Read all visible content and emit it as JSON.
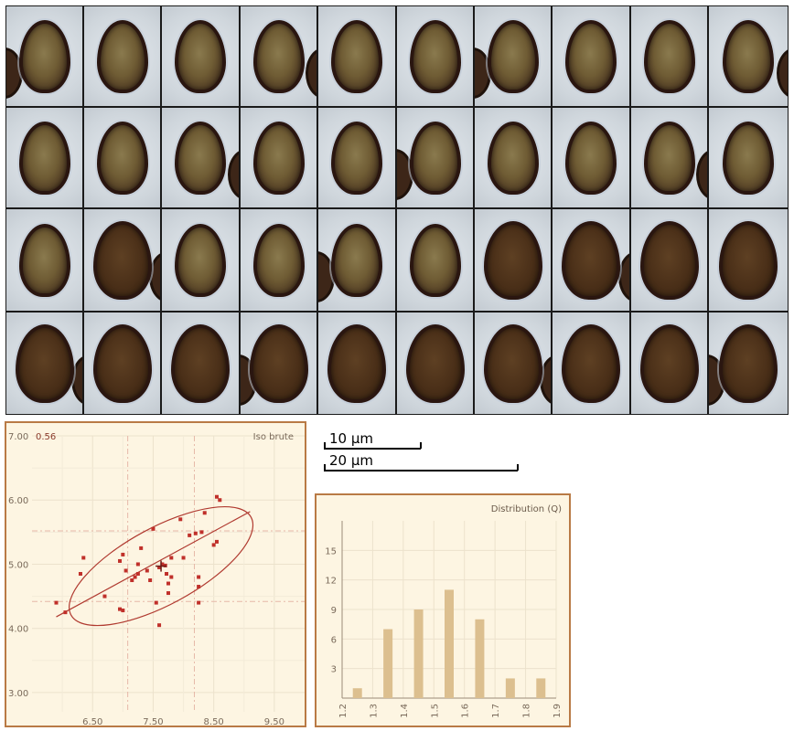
{
  "mosaic": {
    "rows": [
      [
        "light",
        "light",
        "light",
        "light",
        "light",
        "light",
        "light",
        "light",
        "light",
        "light"
      ],
      [
        "light",
        "light",
        "light",
        "light",
        "light",
        "light",
        "light",
        "light",
        "light",
        "light"
      ],
      [
        "light",
        "dark",
        "light",
        "light",
        "light",
        "light",
        "dark",
        "dark",
        "dark",
        "dark"
      ],
      [
        "dark",
        "dark",
        "dark",
        "dark",
        "dark",
        "dark",
        "dark",
        "dark",
        "dark",
        "dark"
      ]
    ]
  },
  "scale_bars": [
    {
      "label": "10 µm"
    },
    {
      "label": "20 µm"
    }
  ],
  "chart_data": [
    {
      "type": "scatter",
      "title": "Iso brute",
      "corner_value": "0.56",
      "x_ticks": [
        "6.50",
        "7.50",
        "8.50",
        "9.50"
      ],
      "x_tick_values": [
        6.5,
        7.5,
        8.5,
        9.5
      ],
      "y_ticks": [
        "7.00",
        "6.00",
        "5.00",
        "4.00",
        "3.00"
      ],
      "y_tick_values": [
        7,
        6,
        5,
        4,
        3
      ],
      "xlim": [
        5.5,
        10.0
      ],
      "ylim": [
        2.7,
        7.0
      ],
      "points": [
        [
          5.9,
          4.4
        ],
        [
          6.05,
          4.25
        ],
        [
          6.3,
          4.85
        ],
        [
          6.35,
          5.1
        ],
        [
          6.7,
          4.5
        ],
        [
          6.95,
          4.3
        ],
        [
          7.0,
          4.28
        ],
        [
          6.95,
          5.05
        ],
        [
          7.0,
          5.15
        ],
        [
          7.05,
          4.9
        ],
        [
          7.2,
          4.8
        ],
        [
          7.25,
          4.85
        ],
        [
          7.3,
          5.25
        ],
        [
          7.25,
          5.0
        ],
        [
          7.4,
          4.9
        ],
        [
          7.45,
          4.75
        ],
        [
          7.5,
          5.55
        ],
        [
          7.6,
          4.95
        ],
        [
          7.65,
          5.0
        ],
        [
          7.7,
          4.98
        ],
        [
          7.72,
          4.85
        ],
        [
          7.75,
          4.7
        ],
        [
          7.75,
          4.55
        ],
        [
          7.8,
          5.1
        ],
        [
          7.6,
          4.05
        ],
        [
          7.8,
          4.8
        ],
        [
          8.0,
          5.1
        ],
        [
          8.1,
          5.45
        ],
        [
          8.2,
          5.48
        ],
        [
          8.25,
          4.65
        ],
        [
          8.25,
          4.4
        ],
        [
          8.3,
          5.5
        ],
        [
          8.35,
          5.8
        ],
        [
          8.5,
          5.3
        ],
        [
          8.55,
          5.35
        ],
        [
          8.55,
          6.05
        ],
        [
          8.6,
          6.0
        ],
        [
          7.95,
          5.7
        ],
        [
          8.25,
          4.8
        ],
        [
          7.15,
          4.75
        ],
        [
          7.55,
          4.4
        ]
      ],
      "mean": [
        7.63,
        4.97
      ],
      "grid": true
    },
    {
      "type": "bar",
      "title": "Distribution (Q)",
      "x_ticks": [
        "1.2",
        "1.3",
        "1.4",
        "1.5",
        "1.6",
        "1.7",
        "1.8",
        "1.9"
      ],
      "y_ticks": [
        "3",
        "6",
        "9",
        "12",
        "15"
      ],
      "ylim": [
        0,
        18
      ],
      "categories": [
        "1.25",
        "1.35",
        "1.45",
        "1.55",
        "1.65",
        "1.75",
        "1.85"
      ],
      "values": [
        1,
        7,
        9,
        11,
        8,
        2,
        2
      ]
    }
  ],
  "colors": {
    "panel_border": "#b97a45",
    "panel_bg": "#fdf5e2",
    "points": "#c0302a",
    "bars": "#dcbf8f",
    "ellipse": "#b03a30"
  }
}
